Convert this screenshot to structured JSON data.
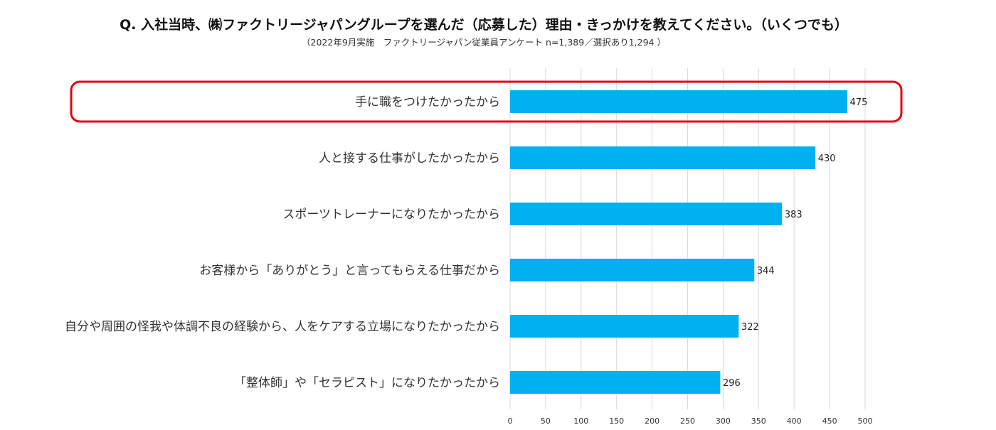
{
  "chart_data": {
    "type": "bar",
    "orientation": "horizontal",
    "title": "Q. 入社当時、㈱ファクトリージャパングループを選んだ（応募した）理由・きっかけを教えてください。（いくつでも）",
    "subtitle": "（2022年9月実施　ファクトリージャパン従業員アンケート n=1,389／選択あり1,294 ）",
    "categories": [
      "手に職をつけたかったから",
      "人と接する仕事がしたかったから",
      "スポーツトレーナーになりたかったから",
      "お客様から「ありがとう」と言ってもらえる仕事だから",
      "自分や周囲の怪我や体調不良の経験から、人をケアする立場になりたかったから",
      "「整体師」や「セラピスト」になりたかったから"
    ],
    "values": [
      475,
      430,
      383,
      344,
      322,
      296
    ],
    "xlim": [
      0,
      500
    ],
    "xticks": [
      "0",
      "50",
      "100",
      "150",
      "200",
      "250",
      "300",
      "350",
      "400",
      "450",
      "500"
    ],
    "highlighted_category": "手に職をつけたかったから",
    "grid": true,
    "bar_color": "#00B0F0",
    "gridline_color": "#D9D9D9",
    "highlight_color": "#E60012"
  }
}
